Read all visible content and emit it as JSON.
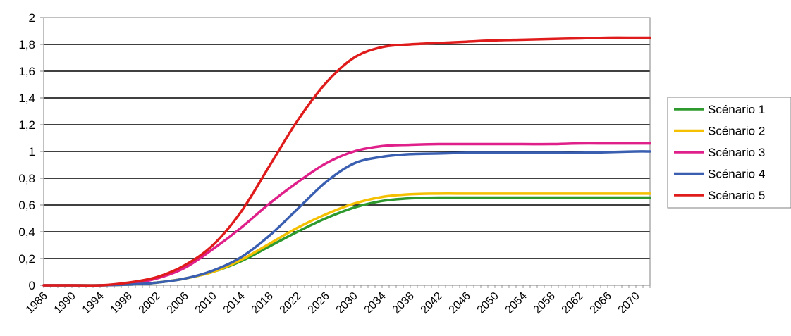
{
  "chart_data": {
    "type": "line",
    "title": "",
    "xlabel": "",
    "ylabel": "",
    "ylim": [
      0,
      2
    ],
    "xlim": [
      1986,
      2072
    ],
    "grid": "horizontal",
    "legend_position": "right",
    "y_ticks": [
      "0",
      "0,2",
      "0,4",
      "0,6",
      "0,8",
      "1",
      "1,2",
      "1,4",
      "1,6",
      "1,8",
      "2"
    ],
    "x_tick_labels": [
      "1986",
      "1990",
      "1994",
      "1998",
      "2002",
      "2006",
      "2010",
      "2014",
      "2018",
      "2022",
      "2026",
      "2030",
      "2034",
      "2038",
      "2042",
      "2046",
      "2050",
      "2054",
      "2058",
      "2062",
      "2066",
      "2070"
    ],
    "x": [
      1986,
      1990,
      1994,
      1998,
      2002,
      2006,
      2010,
      2014,
      2018,
      2022,
      2026,
      2030,
      2034,
      2038,
      2042,
      2046,
      2050,
      2054,
      2058,
      2062,
      2066,
      2070,
      2072
    ],
    "series": [
      {
        "name": "Scénario 1",
        "color": "#2e9a2e",
        "values": [
          0,
          0,
          0,
          0.005,
          0.02,
          0.05,
          0.1,
          0.18,
          0.29,
          0.4,
          0.5,
          0.58,
          0.63,
          0.65,
          0.655,
          0.655,
          0.655,
          0.655,
          0.655,
          0.655,
          0.655,
          0.655,
          0.655
        ]
      },
      {
        "name": "Scénario 2",
        "color": "#f5c000",
        "values": [
          0,
          0,
          0,
          0.005,
          0.02,
          0.05,
          0.1,
          0.19,
          0.31,
          0.43,
          0.53,
          0.61,
          0.66,
          0.68,
          0.685,
          0.685,
          0.685,
          0.685,
          0.685,
          0.685,
          0.685,
          0.685,
          0.685
        ]
      },
      {
        "name": "Scénario 3",
        "color": "#e0208a",
        "values": [
          0,
          0,
          0,
          0.01,
          0.05,
          0.13,
          0.27,
          0.43,
          0.61,
          0.77,
          0.91,
          1.0,
          1.04,
          1.05,
          1.055,
          1.055,
          1.055,
          1.055,
          1.055,
          1.06,
          1.06,
          1.06,
          1.06
        ]
      },
      {
        "name": "Scénario 4",
        "color": "#3a5fb0",
        "values": [
          0,
          0,
          0,
          0.005,
          0.02,
          0.05,
          0.11,
          0.21,
          0.37,
          0.57,
          0.77,
          0.91,
          0.96,
          0.98,
          0.985,
          0.99,
          0.99,
          0.99,
          0.99,
          0.99,
          0.995,
          1.0,
          1.0
        ]
      },
      {
        "name": "Scénario 5",
        "color": "#e01b1b",
        "values": [
          0,
          0,
          0,
          0.02,
          0.06,
          0.15,
          0.3,
          0.55,
          0.89,
          1.23,
          1.51,
          1.7,
          1.78,
          1.8,
          1.81,
          1.82,
          1.83,
          1.835,
          1.84,
          1.845,
          1.85,
          1.85,
          1.85
        ]
      }
    ]
  }
}
